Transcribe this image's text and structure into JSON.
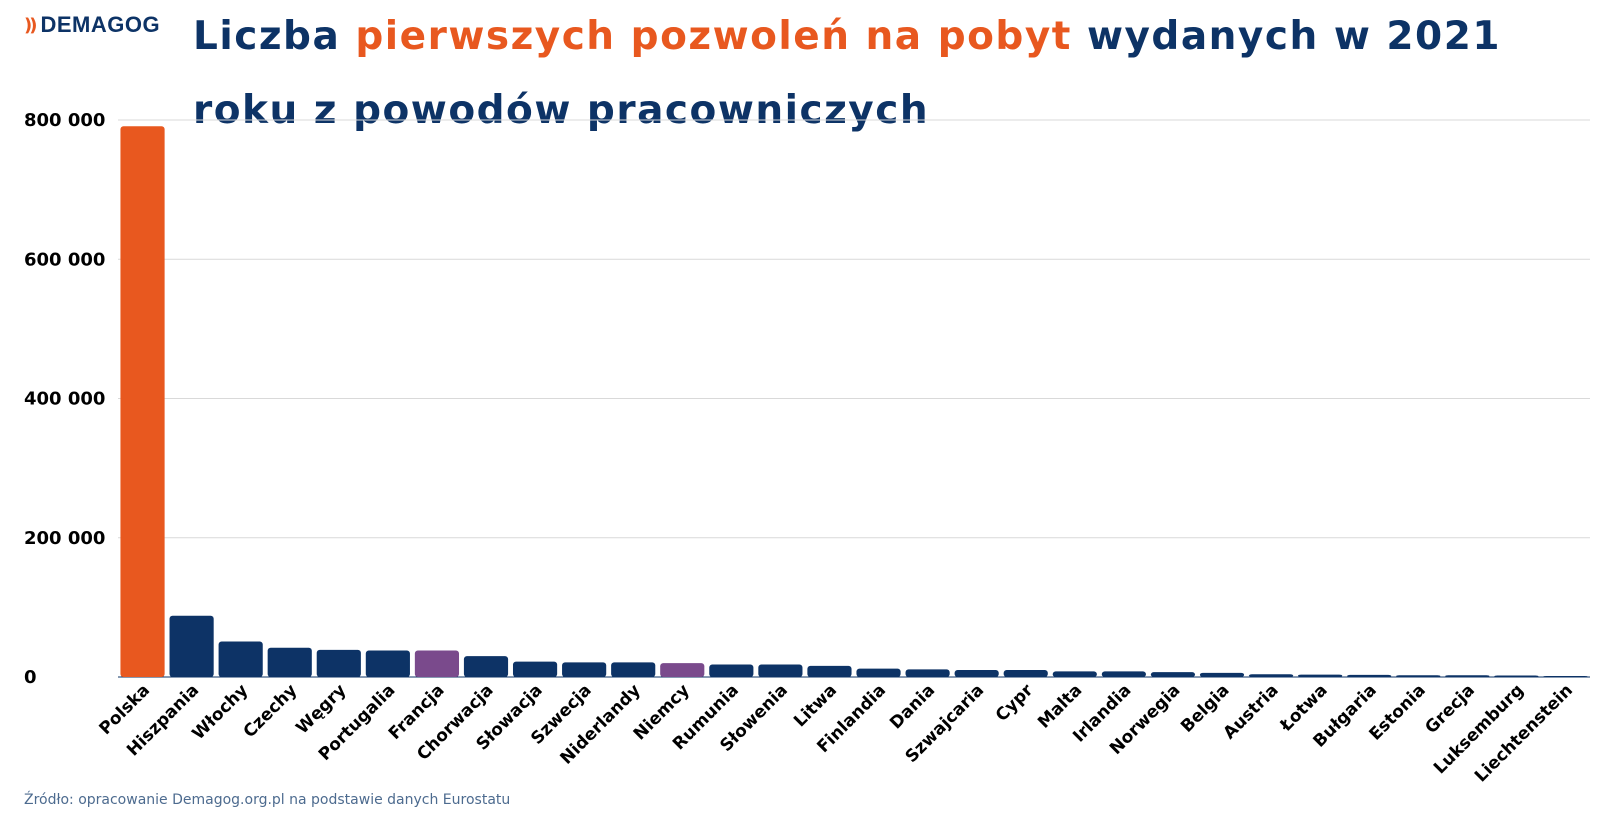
{
  "brand": {
    "logo_text": "DEMAGOG",
    "logo_icon": "double-chevron-icon"
  },
  "title": {
    "part1": "Liczba ",
    "highlight": "pierwszych pozwoleń na pobyt",
    "part2": " wydanych w 2021 roku z powodów pracowniczych"
  },
  "source": "Źródło: opracowanie Demagog.org.pl na podstawie danych Eurostatu",
  "colors": {
    "navy": "#0d3366",
    "orange": "#e8581f",
    "purple": "#7a4a8c",
    "grid": "#d9d9d9",
    "source_text": "#4d6b8f"
  },
  "chart_data": {
    "type": "bar",
    "title": "Liczba pierwszych pozwoleń na pobyt wydanych w 2021 roku z powodów pracowniczych",
    "xlabel": "",
    "ylabel": "",
    "ylim": [
      0,
      800000
    ],
    "yticks": [
      0,
      200000,
      400000,
      600000,
      800000
    ],
    "ytick_labels": [
      "0",
      "200 000",
      "400 000",
      "600 000",
      "800 000"
    ],
    "grid": true,
    "legend": "none",
    "categories": [
      "Polska",
      "Hiszpania",
      "Włochy",
      "Czechy",
      "Węgry",
      "Portugalia",
      "Francja",
      "Chorwacja",
      "Słowacja",
      "Szwecja",
      "Niderlandy",
      "Niemcy",
      "Rumunia",
      "Słowenia",
      "Litwa",
      "Finlandia",
      "Dania",
      "Szwajcaria",
      "Cypr",
      "Malta",
      "Irlandia",
      "Norwegia",
      "Belgia",
      "Austria",
      "Łotwa",
      "Bułgaria",
      "Estonia",
      "Grecja",
      "Luksemburg",
      "Liechtenstein"
    ],
    "values": [
      791000,
      88000,
      51000,
      42000,
      39000,
      38000,
      38000,
      30000,
      22000,
      21000,
      21000,
      20000,
      18000,
      18000,
      16000,
      12000,
      11000,
      10000,
      10000,
      8000,
      8000,
      7000,
      6000,
      4000,
      3500,
      3000,
      2500,
      2500,
      2200,
      500
    ],
    "bar_colors": [
      "#e8581f",
      "#0d3366",
      "#0d3366",
      "#0d3366",
      "#0d3366",
      "#0d3366",
      "#7a4a8c",
      "#0d3366",
      "#0d3366",
      "#0d3366",
      "#0d3366",
      "#7a4a8c",
      "#0d3366",
      "#0d3366",
      "#0d3366",
      "#0d3366",
      "#0d3366",
      "#0d3366",
      "#0d3366",
      "#0d3366",
      "#0d3366",
      "#0d3366",
      "#0d3366",
      "#0d3366",
      "#0d3366",
      "#0d3366",
      "#0d3366",
      "#0d3366",
      "#0d3366",
      "#0d3366"
    ]
  }
}
